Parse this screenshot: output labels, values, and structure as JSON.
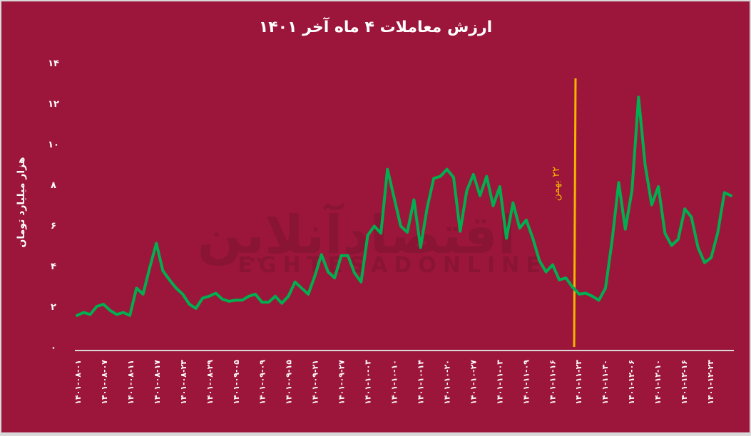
{
  "chart_data": {
    "type": "line",
    "title": "ارزش معاملات ۴ ماه آخر ۱۴۰۱",
    "xlabel": "",
    "ylabel": "هزار میلیارد تومان",
    "ylim": [
      0,
      14
    ],
    "yticks": [
      0,
      2,
      4,
      6,
      8,
      10,
      12,
      14
    ],
    "ytick_labels": [
      "۰",
      "۲",
      "۴",
      "۶",
      "۸",
      "۱۰",
      "۱۲",
      "۱۴"
    ],
    "grid": false,
    "legend": null,
    "xtick_labels": [
      "۱۴۰۱-۰۸-۰۱",
      "۱۴۰۱-۰۸-۰۷",
      "۱۴۰۱-۰۸-۱۱",
      "۱۴۰۱-۰۸-۱۷",
      "۱۴۰۱-۰۸-۲۳",
      "۱۴۰۱-۰۸-۲۹",
      "۱۴۰۱-۰۹-۰۵",
      "۱۴۰۱-۰۹-۰۹",
      "۱۴۰۱-۰۹-۱۵",
      "۱۴۰۱-۰۹-۲۱",
      "۱۴۰۱-۰۹-۲۷",
      "۱۴۰۱-۱۰-۰۳",
      "۱۴۰۱-۱۰-۱۰",
      "۱۴۰۱-۱۰-۱۴",
      "۱۴۰۱-۱۰-۲۰",
      "۱۴۰۱-۱۰-۲۷",
      "۱۴۰۱-۱۱-۰۳",
      "۱۴۰۱-۱۱-۰۹",
      "۱۴۰۱-۱۱-۱۶",
      "۱۴۰۱-۱۱-۲۳",
      "۱۴۰۱-۱۱-۳۰",
      "۱۴۰۱-۱۲-۰۶",
      "۱۴۰۱-۱۲-۱۰",
      "۱۴۰۱-۱۲-۱۶",
      "۱۴۰۱-۱۲-۲۳"
    ],
    "series": [
      {
        "name": "ارزش معاملات",
        "color": "#00b050",
        "values": [
          1.55,
          1.7,
          1.6,
          2.0,
          2.1,
          1.8,
          1.6,
          1.7,
          1.55,
          2.9,
          2.6,
          3.9,
          5.1,
          3.75,
          3.3,
          2.9,
          2.6,
          2.1,
          1.9,
          2.4,
          2.5,
          2.65,
          2.35,
          2.25,
          2.3,
          2.3,
          2.5,
          2.6,
          2.2,
          2.2,
          2.5,
          2.15,
          2.5,
          3.2,
          2.9,
          2.6,
          3.5,
          4.55,
          3.7,
          3.4,
          4.5,
          4.5,
          3.65,
          3.2,
          5.5,
          5.95,
          5.6,
          8.75,
          7.35,
          5.95,
          5.65,
          7.25,
          4.9,
          6.85,
          8.3,
          8.4,
          8.75,
          8.35,
          5.7,
          7.7,
          8.5,
          7.45,
          8.4,
          6.95,
          7.9,
          5.35,
          7.1,
          5.85,
          6.25,
          5.35,
          4.25,
          3.7,
          4.05,
          3.3,
          3.4,
          2.95,
          2.6,
          2.65,
          2.5,
          2.3,
          2.9,
          5.25,
          8.1,
          5.8,
          7.7,
          12.3,
          8.95,
          7.0,
          7.9,
          5.6,
          5.0,
          5.3,
          6.8,
          6.4,
          4.9,
          4.15,
          4.4,
          5.65,
          7.6,
          7.45
        ]
      }
    ],
    "annotations": [
      {
        "type": "vline",
        "label": "۲۲ بهمن",
        "color": "#f4b400",
        "x_index": 76
      }
    ]
  },
  "watermark": {
    "fa": "اقتصادآنلاین",
    "en": "EGHTESADONLINE"
  },
  "colors": {
    "background": "#9c163b",
    "line": "#00b050",
    "annotation": "#f4b400",
    "axis": "#d9d9d9",
    "text": "#ffffff"
  }
}
